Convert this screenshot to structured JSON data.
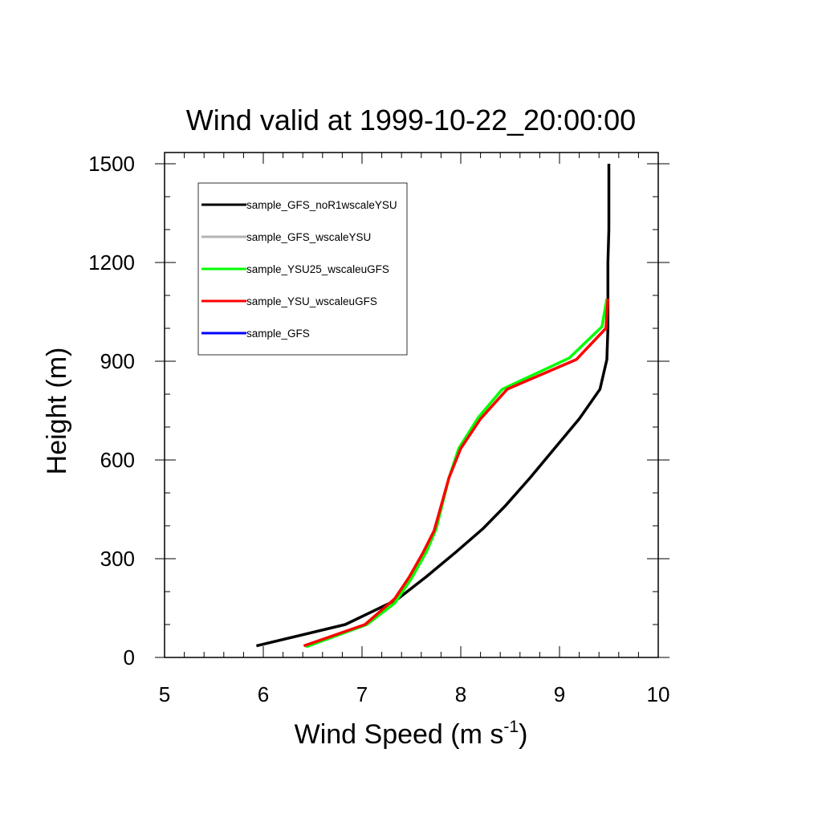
{
  "chart_data": {
    "type": "line",
    "title": "Wind valid at 1999-10-22_20:00:00",
    "xlabel": "Wind Speed (m s",
    "xlabel_sup": "-1",
    "xlabel_end": ")",
    "ylabel": "Height (m)",
    "xlim": [
      5,
      10
    ],
    "ylim": [
      0,
      1500
    ],
    "xticks": [
      5,
      6,
      7,
      8,
      9,
      10
    ],
    "xtick_labels": [
      "5",
      "6",
      "7",
      "8",
      "9",
      "10"
    ],
    "yticks": [
      0,
      300,
      600,
      900,
      1200,
      1500
    ],
    "ytick_labels": [
      "0",
      "300",
      "600",
      "900",
      "1200",
      "1500"
    ],
    "grid": false,
    "legend_position": "top-left",
    "series": [
      {
        "name": "sample_GFS_noR1wscaleYSU",
        "color": "#000000",
        "points": [
          [
            5.93,
            35
          ],
          [
            6.83,
            100
          ],
          [
            7.35,
            175
          ],
          [
            7.65,
            245
          ],
          [
            7.95,
            320
          ],
          [
            8.22,
            390
          ],
          [
            8.45,
            460
          ],
          [
            8.7,
            545
          ],
          [
            8.95,
            635
          ],
          [
            9.2,
            725
          ],
          [
            9.41,
            815
          ],
          [
            9.48,
            905
          ],
          [
            9.49,
            1000
          ],
          [
            9.49,
            1100
          ],
          [
            9.49,
            1200
          ],
          [
            9.5,
            1300
          ],
          [
            9.5,
            1400
          ],
          [
            9.5,
            1500
          ]
        ]
      },
      {
        "name": "sample_GFS_wscaleYSU",
        "color": "#b3b3b3",
        "points": []
      },
      {
        "name": "sample_YSU25_wscaleuGFS",
        "color": "#00ff00",
        "points": [
          [
            6.43,
            32
          ],
          [
            7.05,
            100
          ],
          [
            7.33,
            165
          ],
          [
            7.5,
            240
          ],
          [
            7.65,
            320
          ],
          [
            7.75,
            390
          ],
          [
            7.88,
            545
          ],
          [
            7.98,
            635
          ],
          [
            8.18,
            730
          ],
          [
            8.42,
            815
          ],
          [
            9.1,
            910
          ],
          [
            9.43,
            1005
          ],
          [
            9.48,
            1090
          ]
        ]
      },
      {
        "name": "sample_YSU_wscaleuGFS",
        "color": "#ff0000",
        "points": [
          [
            6.41,
            35
          ],
          [
            7.03,
            100
          ],
          [
            7.33,
            178
          ],
          [
            7.48,
            245
          ],
          [
            7.62,
            320
          ],
          [
            7.73,
            385
          ],
          [
            7.88,
            545
          ],
          [
            8.0,
            635
          ],
          [
            8.2,
            725
          ],
          [
            8.47,
            815
          ],
          [
            9.17,
            905
          ],
          [
            9.47,
            1000
          ],
          [
            9.49,
            1090
          ]
        ]
      },
      {
        "name": "sample_GFS",
        "color": "#0000ff",
        "points": []
      }
    ]
  }
}
